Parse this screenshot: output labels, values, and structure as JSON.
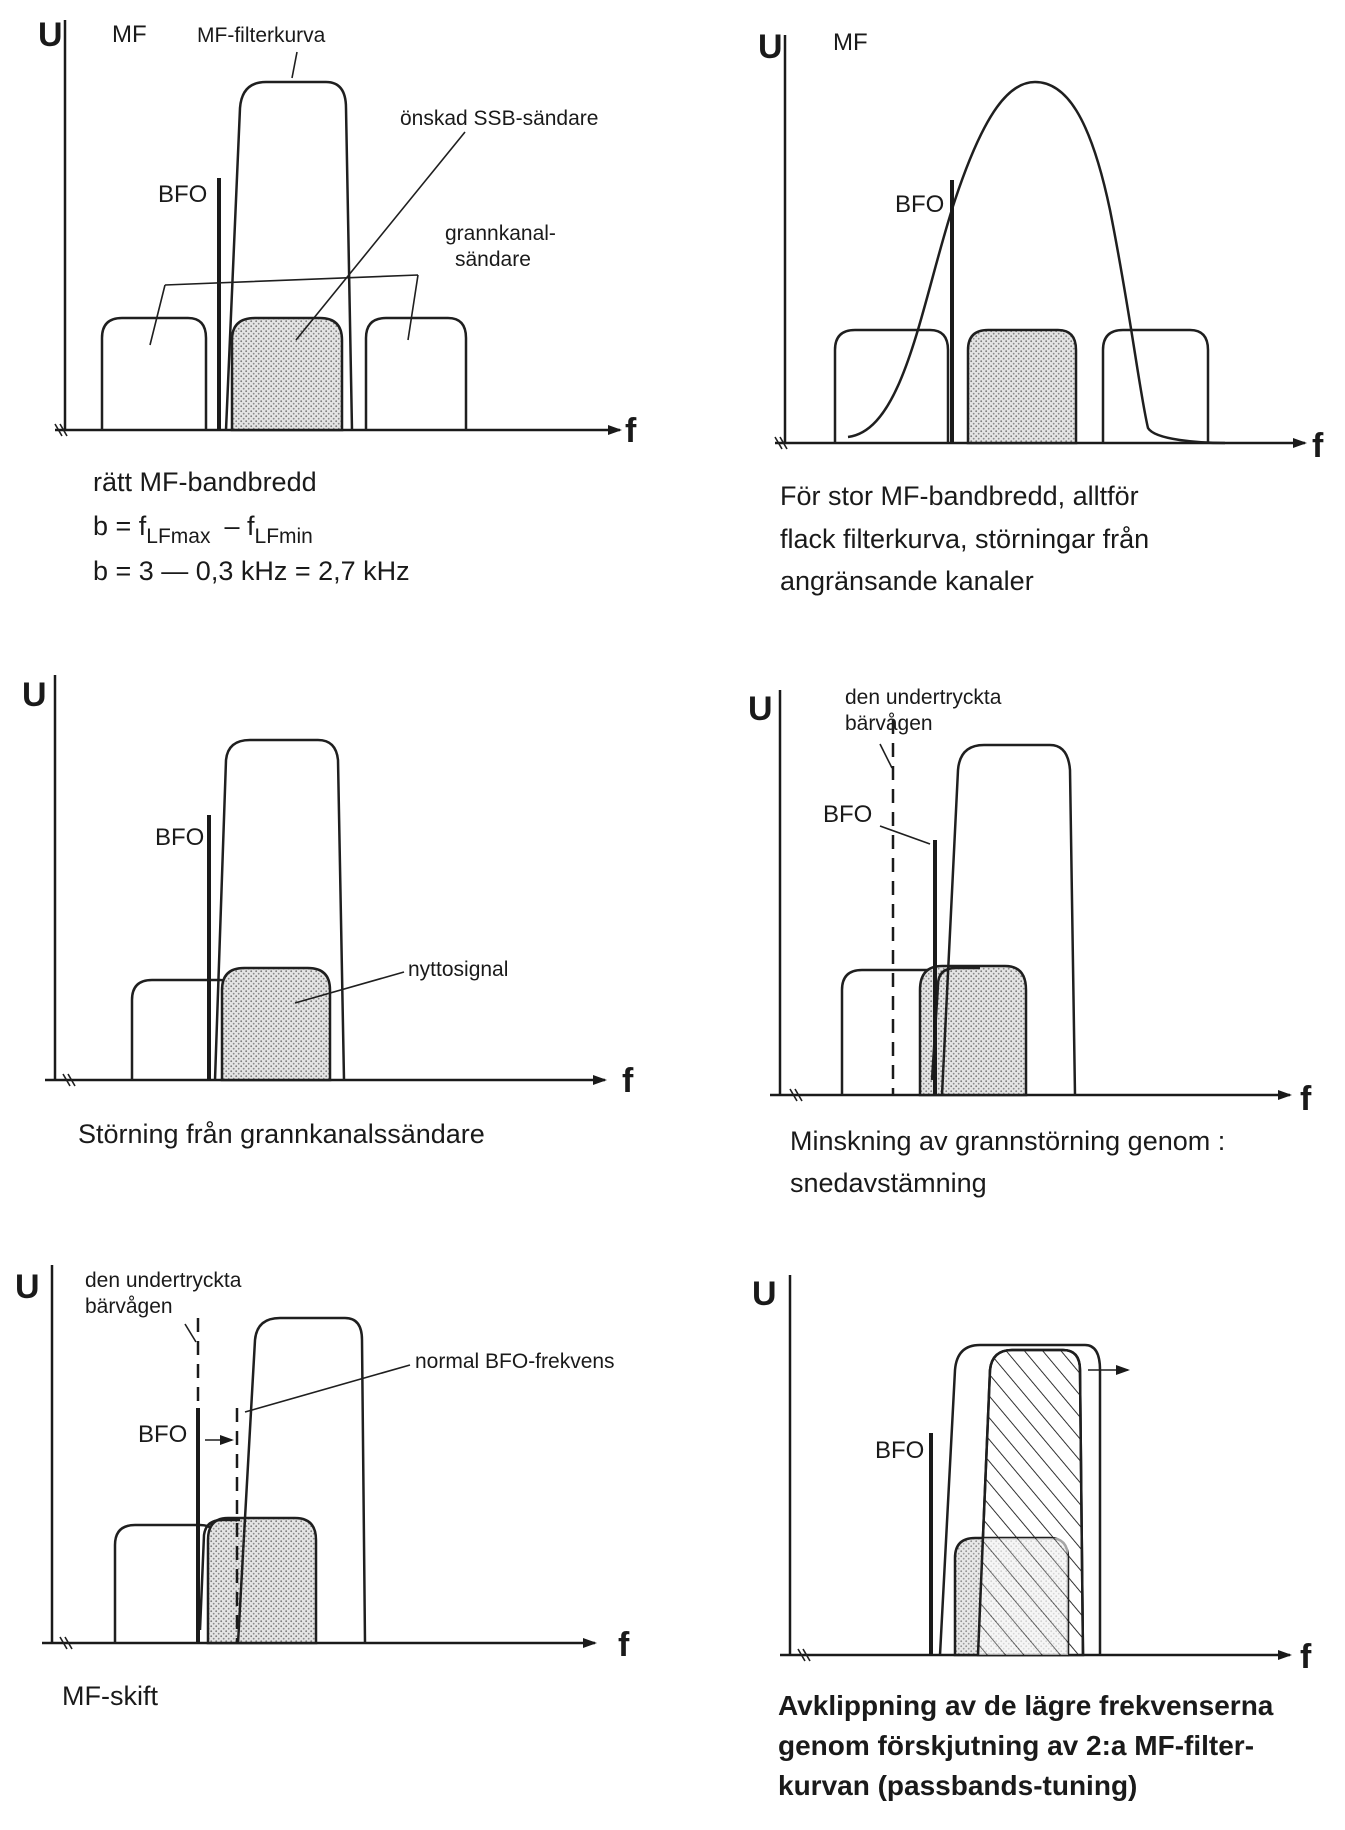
{
  "panels": [
    {
      "id": "p1",
      "y_label": "U",
      "x_label": "f",
      "mf_label": "MF",
      "labels": {
        "filter_curve": "MF-filterkurva",
        "desired": "önskad SSB-sändare",
        "bfo": "BFO",
        "adjacent_1": "grannkanal-",
        "adjacent_2": "sändare"
      },
      "caption": [
        "rätt MF-bandbredd",
        "b = f",
        "b = 3   —   0,3 kHz = 2,7 kHz"
      ],
      "formula": {
        "sub_max": "LFmax",
        "minus": "–  f",
        "sub_min": "LFmin"
      }
    },
    {
      "id": "p2",
      "y_label": "U",
      "x_label": "f",
      "mf_label": "MF",
      "labels": {
        "bfo": "BFO"
      },
      "caption": [
        "För stor MF-bandbredd, alltför",
        "flack filterkurva, störningar från",
        "angränsande kanaler"
      ]
    },
    {
      "id": "p3",
      "y_label": "U",
      "x_label": "f",
      "labels": {
        "bfo": "BFO",
        "useful": "nyttosignal"
      },
      "caption": [
        "Störning från grannkanalssändare"
      ]
    },
    {
      "id": "p4",
      "y_label": "U",
      "x_label": "f",
      "labels": {
        "bfo": "BFO",
        "carrier_1": "den undertryckta",
        "carrier_2": "bärvågen"
      },
      "caption": [
        "Minskning av grannstörning genom :",
        "snedavstämning"
      ]
    },
    {
      "id": "p5",
      "y_label": "U",
      "x_label": "f",
      "labels": {
        "bfo": "BFO",
        "carrier_1": "den undertryckta",
        "carrier_2": "bärvågen",
        "normal_bfo": "normal BFO-frekvens"
      },
      "caption": [
        "MF-skift"
      ]
    },
    {
      "id": "p6",
      "y_label": "U",
      "x_label": "f",
      "labels": {
        "bfo": "BFO"
      },
      "caption": [
        "Avklippning av de lägre frekvenserna",
        "genom förskjutning av 2:a MF-filter-",
        "kurvan (passbands-tuning)"
      ]
    }
  ]
}
